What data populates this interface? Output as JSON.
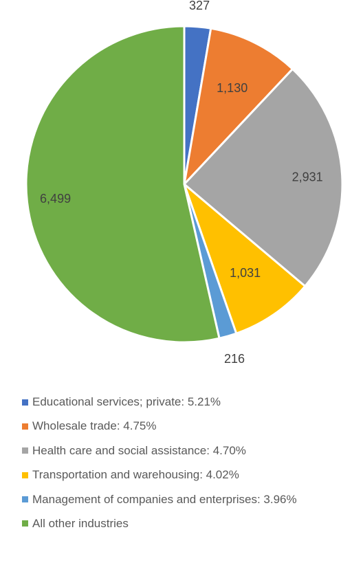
{
  "chart_data": {
    "type": "pie",
    "title": "",
    "legend_position": "bottom",
    "slices": [
      {
        "label": "Educational services; private: 5.21%",
        "value": 327,
        "value_label": "327",
        "color": "#4472C4"
      },
      {
        "label": "Wholesale trade: 4.75%",
        "value": 1130,
        "value_label": "1,130",
        "color": "#ED7D31"
      },
      {
        "label": "Health care and social assistance: 4.70%",
        "value": 2931,
        "value_label": "2,931",
        "color": "#A5A5A5"
      },
      {
        "label": "Transportation and warehousing: 4.02%",
        "value": 1031,
        "value_label": "1,031",
        "color": "#FFC000"
      },
      {
        "label": "Management of companies and enterprises: 3.96%",
        "value": 216,
        "value_label": "216",
        "color": "#5B9BD5"
      },
      {
        "label": "All other industries",
        "value": 6499,
        "value_label": "6,499",
        "color": "#70AD47"
      }
    ]
  }
}
